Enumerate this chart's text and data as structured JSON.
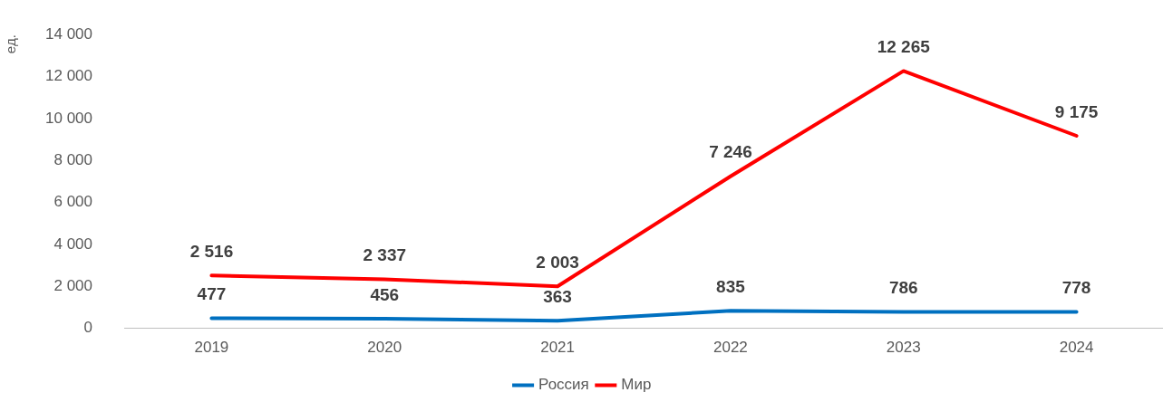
{
  "chart_data": {
    "type": "line",
    "ylabel": "ед.",
    "categories": [
      "2019",
      "2020",
      "2021",
      "2022",
      "2023",
      "2024"
    ],
    "series": [
      {
        "name": "Россия",
        "color": "#0070c0",
        "values": [
          477,
          456,
          363,
          835,
          786,
          778
        ],
        "value_labels": [
          "477",
          "456",
          "363",
          "835",
          "786",
          "778"
        ]
      },
      {
        "name": "Мир",
        "color": "#ff0000",
        "values": [
          2516,
          2337,
          2003,
          7246,
          12265,
          9175
        ],
        "value_labels": [
          "2 516",
          "2 337",
          "2 003",
          "7 246",
          "12 265",
          "9 175"
        ]
      }
    ],
    "ylim": [
      0,
      14000
    ],
    "yticks": [
      {
        "value": 0,
        "label": "0"
      },
      {
        "value": 2000,
        "label": "2 000"
      },
      {
        "value": 4000,
        "label": "4 000"
      },
      {
        "value": 6000,
        "label": "6 000"
      },
      {
        "value": 8000,
        "label": "8 000"
      },
      {
        "value": 10000,
        "label": "10 000"
      },
      {
        "value": 12000,
        "label": "12 000"
      },
      {
        "value": 14000,
        "label": "14 000"
      }
    ],
    "grid": false,
    "legend": "bottom",
    "marker": "none",
    "line_style": "solid"
  }
}
